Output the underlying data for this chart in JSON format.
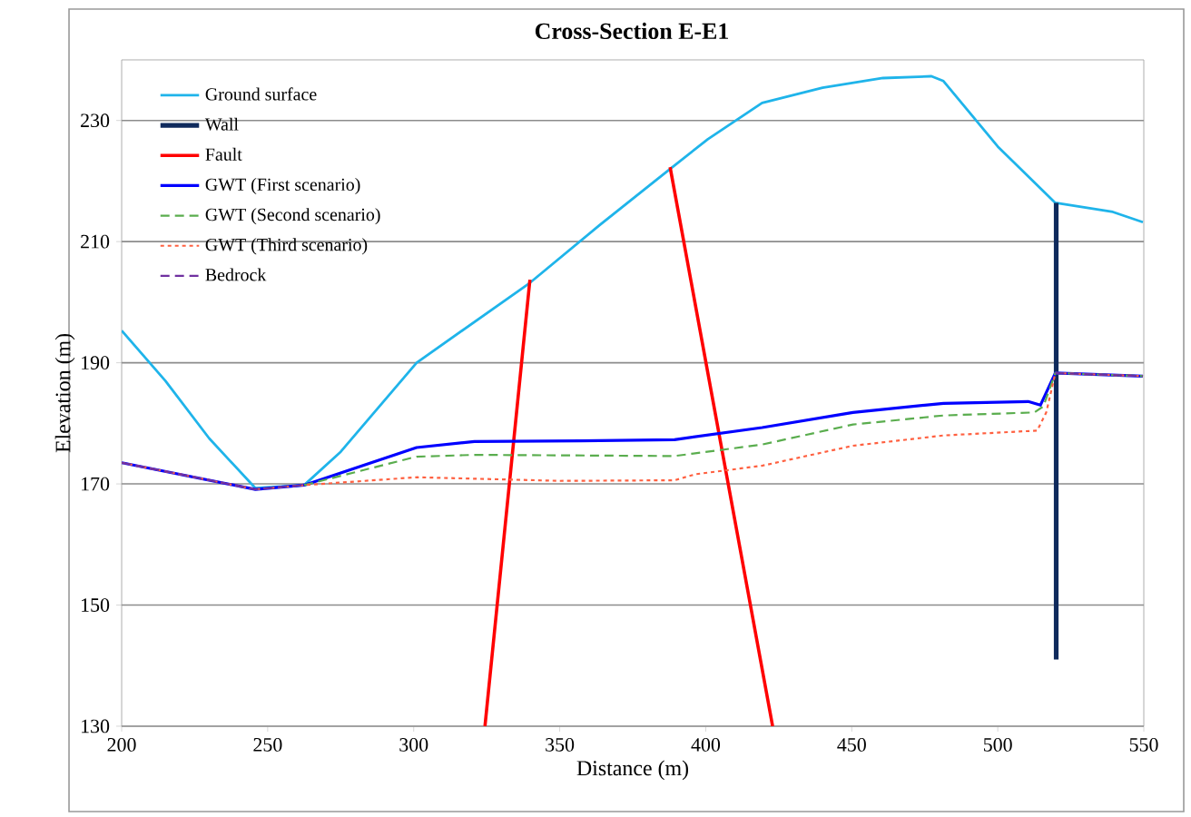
{
  "chart_data": {
    "type": "line",
    "title": "Cross-Section E-E1",
    "xlabel": "Distance (m)",
    "ylabel": "Elevation (m)",
    "xlim": [
      200,
      550
    ],
    "ylim": [
      130,
      240
    ],
    "xticks": [
      200,
      250,
      300,
      350,
      400,
      450,
      500,
      550
    ],
    "yticks": [
      130,
      150,
      170,
      190,
      210,
      230
    ],
    "grid": "y",
    "legend": "top left",
    "marker": "none",
    "series": [
      {
        "name": "Ground surface",
        "color": "#1fb4ea",
        "line_style": "solid",
        "x": [
          200,
          215,
          230,
          245.8,
          262.5,
          275,
          301,
          339.8,
          363.6,
          387.8,
          400.7,
          419.3,
          440,
          460.7,
          477.3,
          481.4,
          500,
          519.7,
          539.4,
          549.7
        ],
        "values": [
          195.3,
          187,
          177.5,
          169.3,
          169.8,
          175.3,
          190,
          203.2,
          212.7,
          222,
          226.9,
          232.9,
          235.4,
          237,
          237.3,
          236.5,
          225.7,
          216.4,
          214.9,
          213.2
        ]
      },
      {
        "name": "Wall",
        "color": "#0f2a5c",
        "line_style": "solid",
        "x": [
          520,
          520
        ],
        "values": [
          141,
          216.4
        ]
      },
      {
        "name": "Fault",
        "color": "#ff0000",
        "line_style": "solid",
        "x": [
          324.4,
          339.8,
          null,
          387.8,
          422.9
        ],
        "values": [
          130,
          203.7,
          null,
          222.3,
          130
        ]
      },
      {
        "name": "GWT (First  scenario)",
        "color": "#0000ff",
        "line_style": "solid",
        "x": [
          200,
          245.8,
          262.5,
          301,
          320.8,
          357.2,
          389.3,
          419.3,
          450.4,
          481.4,
          510.4,
          514.6,
          519.7,
          549.7
        ],
        "values": [
          173.5,
          169.1,
          169.8,
          176,
          177,
          177.1,
          177.3,
          179.3,
          181.8,
          183.3,
          183.6,
          183,
          188.3,
          187.8
        ]
      },
      {
        "name": "GWT (Second scenario)",
        "color": "#5aad4e",
        "line_style": "dashed",
        "x": [
          262.5,
          301,
          320.8,
          389.3,
          419.3,
          450.4,
          481.4,
          512.5,
          515.6,
          519.7,
          549.7
        ],
        "values": [
          169.8,
          174.5,
          174.8,
          174.6,
          176.5,
          179.8,
          181.3,
          181.8,
          182.8,
          188.3,
          187.8
        ]
      },
      {
        "name": "GWT (Third scenario)",
        "color": "#ff6040",
        "line_style": "dotted",
        "x": [
          200,
          245.8,
          262.5,
          301,
          350,
          389.3,
          396.5,
          419.3,
          450.4,
          481.4,
          513.5,
          516.6,
          519.7,
          549.7
        ],
        "values": [
          173.5,
          169.1,
          169.8,
          171.1,
          170.5,
          170.6,
          171.6,
          173,
          176.3,
          178,
          178.8,
          181.8,
          188.3,
          187.8
        ]
      },
      {
        "name": "Bedrock",
        "color": "#7030a0",
        "line_style": "dashed",
        "x": [
          200,
          245.8,
          262.5,
          null,
          519.7,
          549.7
        ],
        "values": [
          173.5,
          169.1,
          169.8,
          null,
          188.3,
          187.8
        ]
      }
    ]
  }
}
